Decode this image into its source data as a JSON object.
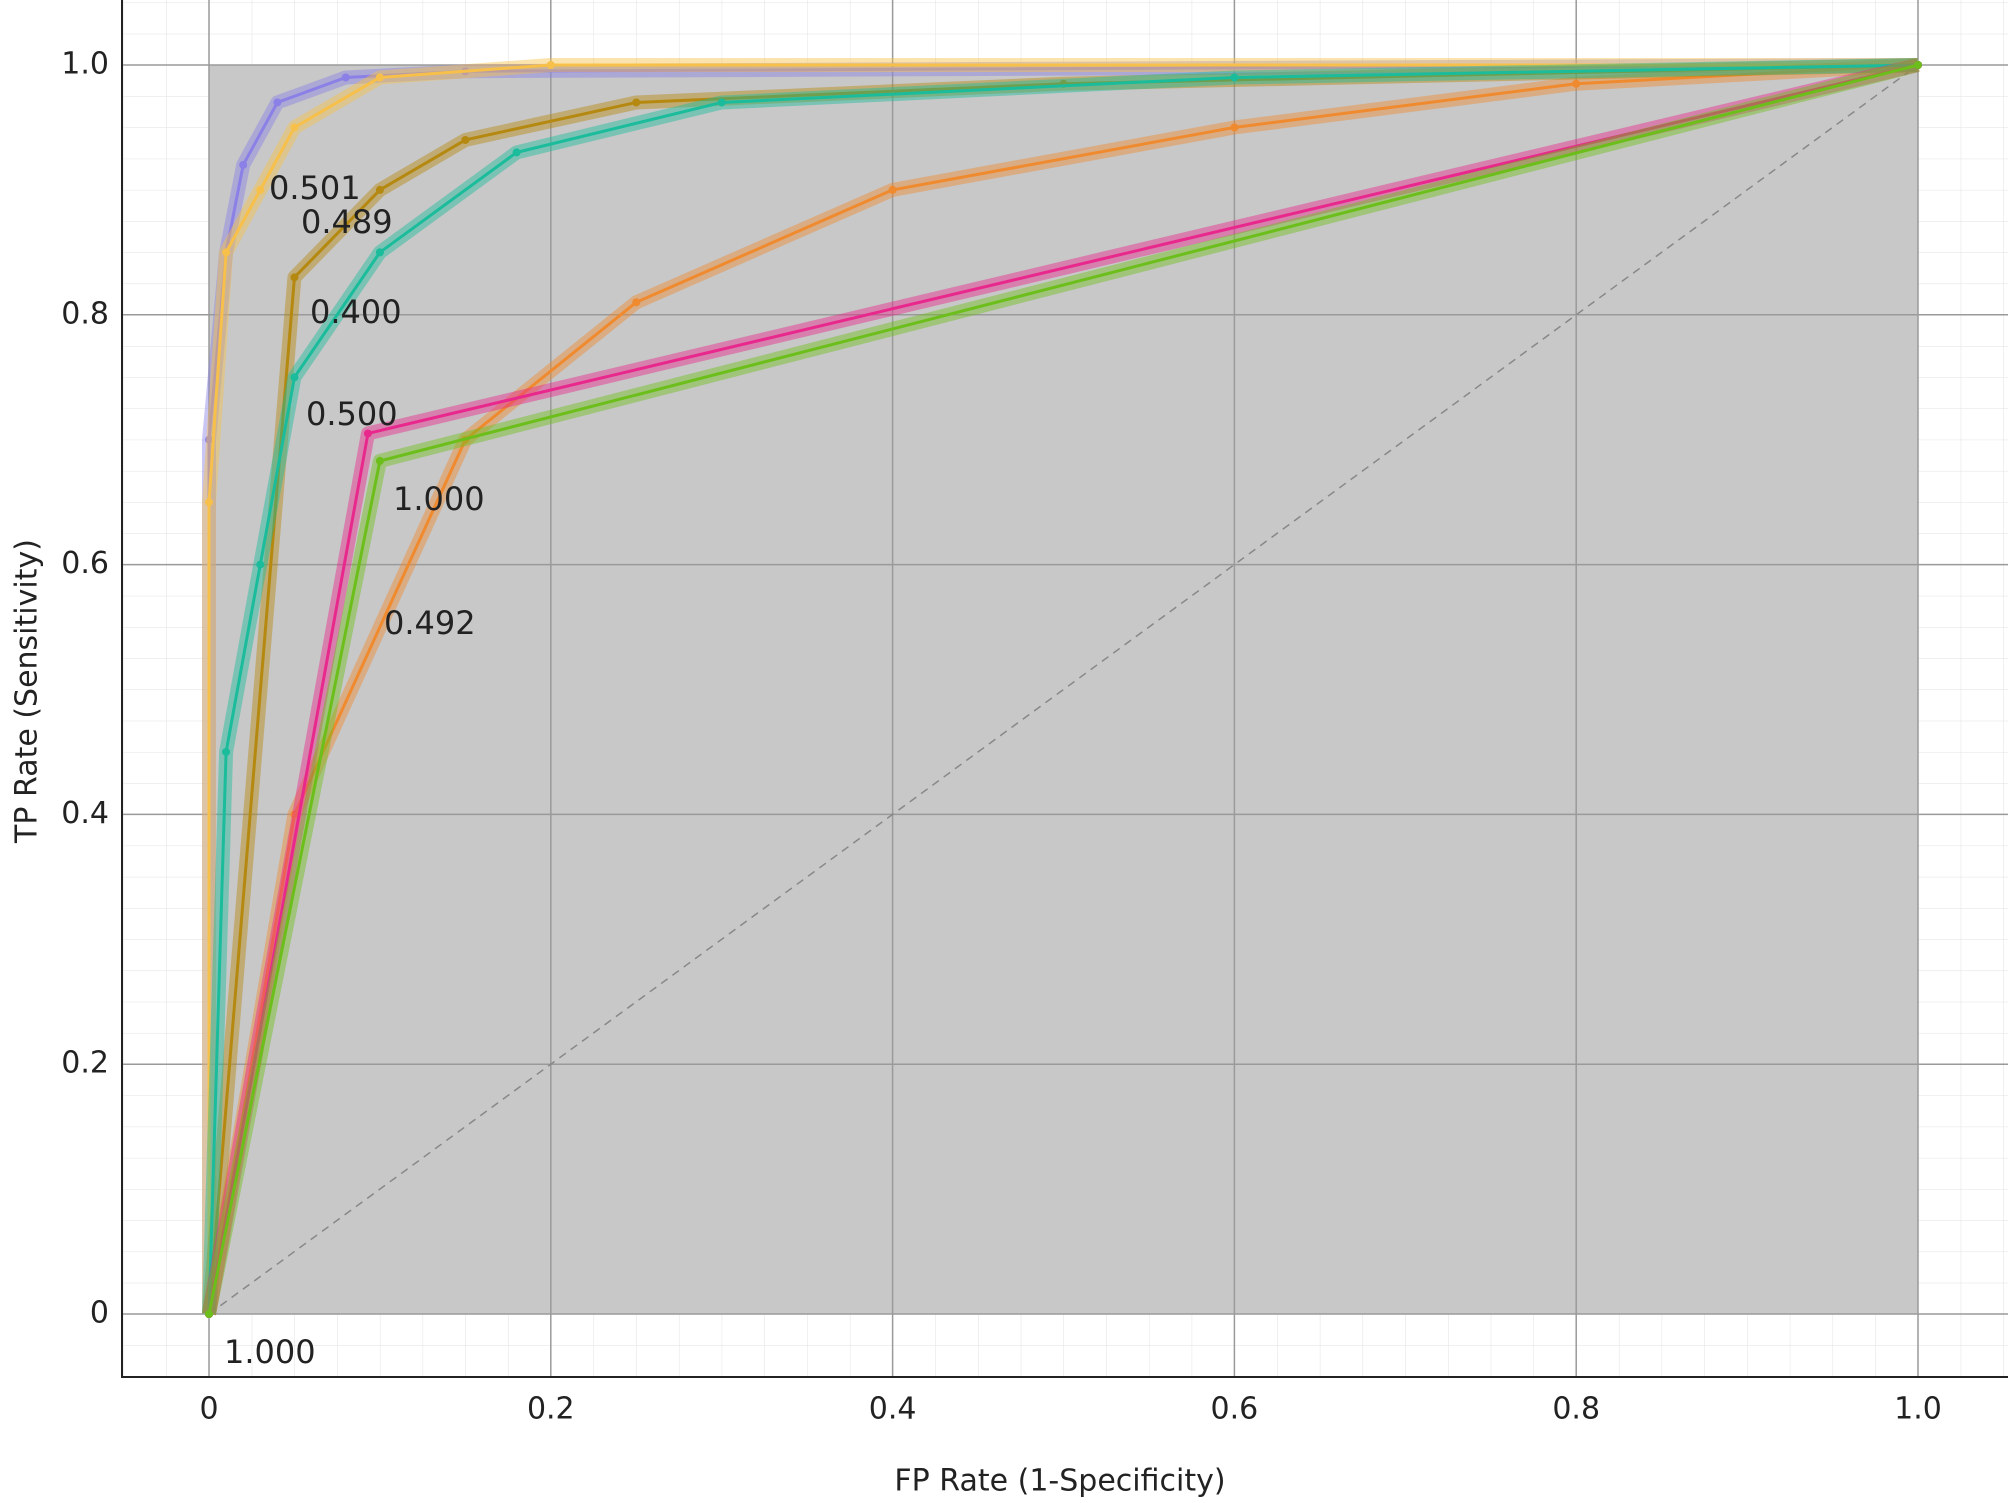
{
  "chart_data": {
    "type": "line",
    "x_label": "FP Rate (1-Specificity)",
    "y_label": "TP Rate (Sensitivity)",
    "xlim": [
      0,
      1
    ],
    "ylim": [
      0,
      1
    ],
    "xticks": [
      0,
      0.2,
      0.4,
      0.6,
      0.8,
      {
        "value": 1,
        "label": "1.0"
      }
    ],
    "yticks": [
      0,
      0.2,
      0.4,
      0.6,
      0.8,
      {
        "value": 1,
        "label": "1.0"
      }
    ],
    "grid": true,
    "series": [
      {
        "color": "#8a80e6",
        "x": [
          0,
          0,
          0.01,
          0.02,
          0.04,
          0.08,
          0.15,
          1
        ],
        "values": [
          0,
          0.7,
          0.85,
          0.92,
          0.97,
          0.99,
          0.995,
          1
        ]
      },
      {
        "color": "#f7c04a",
        "x": [
          0,
          0,
          0.01,
          0.03,
          0.05,
          0.1,
          0.2,
          1
        ],
        "values": [
          0,
          0.65,
          0.85,
          0.9,
          0.95,
          0.99,
          1,
          1
        ]
      },
      {
        "color": "#f08a2e",
        "x": [
          0,
          0.05,
          0.15,
          0.25,
          0.4,
          0.6,
          0.8,
          1
        ],
        "values": [
          0,
          0.4,
          0.7,
          0.81,
          0.9,
          0.95,
          0.985,
          1
        ]
      },
      {
        "color": "#b5880f",
        "x": [
          0,
          0.05,
          0.1,
          0.15,
          0.25,
          0.5,
          1
        ],
        "values": [
          0,
          0.83,
          0.9,
          0.94,
          0.97,
          0.985,
          1
        ]
      },
      {
        "color": "#1abc9c",
        "x": [
          0,
          0.01,
          0.03,
          0.05,
          0.1,
          0.18,
          0.3,
          0.6,
          1
        ],
        "values": [
          0,
          0.45,
          0.6,
          0.75,
          0.85,
          0.93,
          0.97,
          0.99,
          1
        ]
      },
      {
        "color": "#e8288c",
        "x": [
          0,
          0.093,
          1
        ],
        "values": [
          0,
          0.705,
          1
        ]
      },
      {
        "color": "#6cbf1a",
        "x": [
          0,
          0.1,
          1
        ],
        "values": [
          0,
          0.683,
          1
        ]
      }
    ],
    "annotations": [
      "0.501",
      "0.489",
      "0.400",
      "0.500",
      "1.000",
      "0.492",
      "1.000"
    ]
  }
}
